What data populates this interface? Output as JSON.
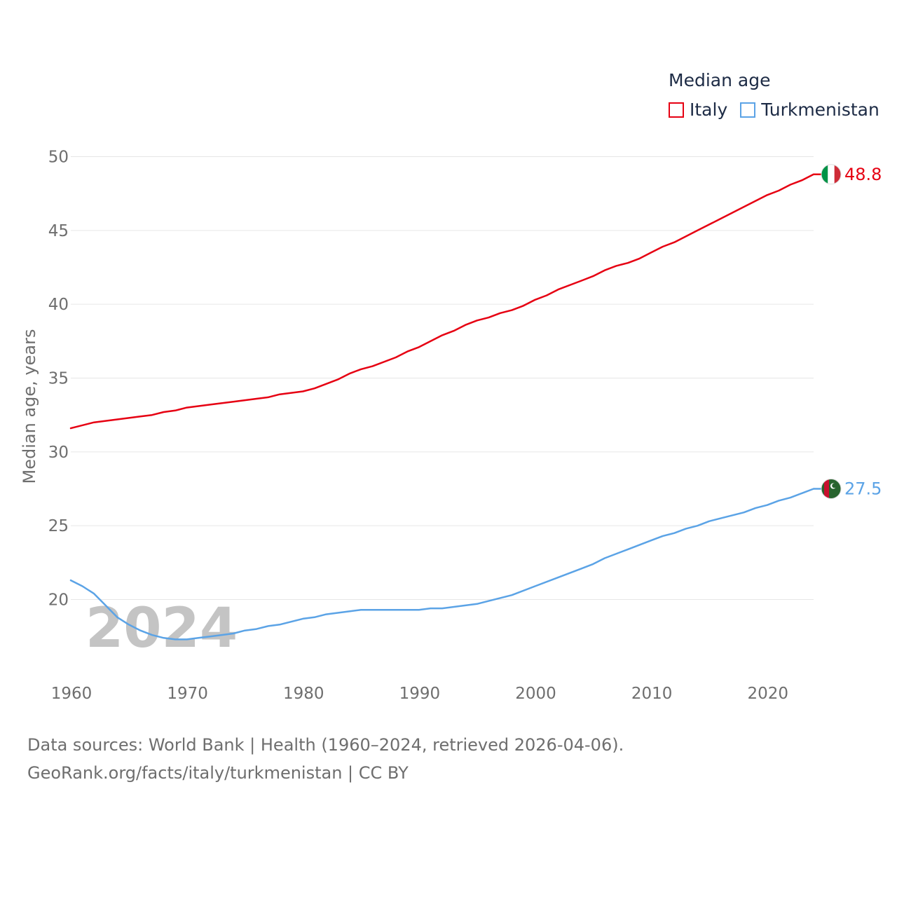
{
  "chart_data": {
    "type": "line",
    "ylabel": "Median age, years",
    "xlabel": "",
    "xlim": [
      1960,
      2024
    ],
    "ylim": [
      16,
      51
    ],
    "x_ticks": [
      1960,
      1970,
      1980,
      1990,
      2000,
      2010,
      2020
    ],
    "y_ticks": [
      20,
      25,
      30,
      35,
      40,
      45,
      50
    ],
    "grid": true,
    "year_watermark": "2024",
    "legend": {
      "title": "Median age",
      "placement": "top-right"
    },
    "series": [
      {
        "name": "Italy",
        "color": "#e60012",
        "end_label": "48.8",
        "flag": "italy-flag",
        "x": [
          1960,
          1962,
          1964,
          1966,
          1967,
          1968,
          1969,
          1970,
          1972,
          1974,
          1976,
          1977,
          1978,
          1980,
          1981,
          1983,
          1984,
          1985,
          1986,
          1988,
          1989,
          1990,
          1992,
          1993,
          1994,
          1995,
          1996,
          1997,
          1998,
          1999,
          2000,
          2001,
          2002,
          2004,
          2005,
          2006,
          2007,
          2008,
          2009,
          2010,
          2011,
          2012,
          2014,
          2016,
          2018,
          2020,
          2021,
          2022,
          2023,
          2024
        ],
        "values": [
          31.6,
          32.0,
          32.2,
          32.4,
          32.5,
          32.7,
          32.8,
          33.0,
          33.2,
          33.4,
          33.6,
          33.7,
          33.9,
          34.1,
          34.3,
          34.9,
          35.3,
          35.6,
          35.8,
          36.4,
          36.8,
          37.1,
          37.9,
          38.2,
          38.6,
          38.9,
          39.1,
          39.4,
          39.6,
          39.9,
          40.3,
          40.6,
          41.0,
          41.6,
          41.9,
          42.3,
          42.6,
          42.8,
          43.1,
          43.5,
          43.9,
          44.2,
          45.0,
          45.8,
          46.6,
          47.4,
          47.7,
          48.1,
          48.4,
          48.8
        ]
      },
      {
        "name": "Turkmenistan",
        "color": "#5ba3e6",
        "end_label": "27.5",
        "flag": "turkmenistan-flag",
        "x": [
          1960,
          1961,
          1962,
          1963,
          1964,
          1965,
          1966,
          1967,
          1968,
          1969,
          1970,
          1971,
          1972,
          1974,
          1975,
          1976,
          1977,
          1978,
          1980,
          1981,
          1982,
          1984,
          1985,
          1986,
          1988,
          1990,
          1991,
          1992,
          1994,
          1995,
          1996,
          1998,
          2000,
          2002,
          2004,
          2005,
          2006,
          2008,
          2010,
          2011,
          2012,
          2013,
          2014,
          2015,
          2016,
          2018,
          2019,
          2020,
          2021,
          2022,
          2023,
          2024
        ],
        "values": [
          21.3,
          20.9,
          20.4,
          19.6,
          18.8,
          18.3,
          17.9,
          17.6,
          17.4,
          17.3,
          17.3,
          17.4,
          17.5,
          17.7,
          17.9,
          18.0,
          18.2,
          18.3,
          18.7,
          18.8,
          19.0,
          19.2,
          19.3,
          19.3,
          19.3,
          19.3,
          19.4,
          19.4,
          19.6,
          19.7,
          19.9,
          20.3,
          20.9,
          21.5,
          22.1,
          22.4,
          22.8,
          23.4,
          24.0,
          24.3,
          24.5,
          24.8,
          25.0,
          25.3,
          25.5,
          25.9,
          26.2,
          26.4,
          26.7,
          26.9,
          27.2,
          27.5
        ]
      }
    ]
  },
  "footer": {
    "line1": "Data sources: World Bank | Health (1960–2024, retrieved 2026-04-06).",
    "line2": "GeoRank.org/facts/italy/turkmenistan | CC BY"
  }
}
